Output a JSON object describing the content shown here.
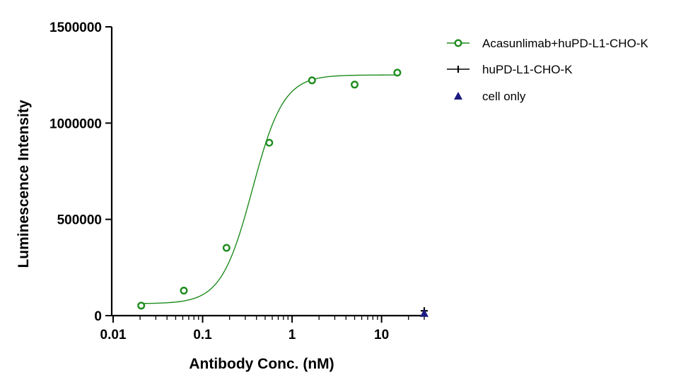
{
  "chart_data": {
    "type": "scatter",
    "title": "",
    "xlabel": "Antibody Conc. (nM)",
    "ylabel": "Luminescence Intensity",
    "xscale": "log",
    "xlim": [
      0.01,
      30
    ],
    "ylim": [
      0,
      1500000
    ],
    "x_ticks": [
      0.01,
      0.1,
      1,
      10
    ],
    "x_tick_labels": [
      "0.01",
      "0.1",
      "1",
      "10"
    ],
    "y_ticks": [
      0,
      500000,
      1000000,
      1500000
    ],
    "y_tick_labels": [
      "0",
      "500000",
      "1000000",
      "1500000"
    ],
    "grid": false,
    "legend_position": "top-right, outside plot",
    "series": [
      {
        "name": "Acasunlimab+huPD-L1-CHO-K",
        "marker": "open-circle",
        "color": "#1e8c1e",
        "fit_curve": true,
        "x": [
          0.0206,
          0.0617,
          0.185,
          0.556,
          1.67,
          5.0,
          15.0
        ],
        "y": [
          52000,
          130000,
          352000,
          898000,
          1222000,
          1200000,
          1262000
        ]
      },
      {
        "name": "huPD-L1-CHO-K",
        "marker": "plus",
        "color": "#000000",
        "fit_curve": false,
        "x": [
          30
        ],
        "y": [
          25000
        ]
      },
      {
        "name": "cell only",
        "marker": "triangle",
        "color": "#1a1a80",
        "fit_curve": false,
        "x": [
          30
        ],
        "y": [
          12000
        ]
      }
    ]
  }
}
